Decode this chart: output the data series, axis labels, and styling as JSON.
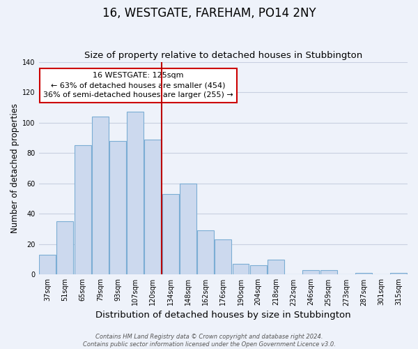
{
  "title": "16, WESTGATE, FAREHAM, PO14 2NY",
  "subtitle": "Size of property relative to detached houses in Stubbington",
  "xlabel": "Distribution of detached houses by size in Stubbington",
  "ylabel": "Number of detached properties",
  "bar_color": "#ccd9ee",
  "bar_edge_color": "#7badd4",
  "categories": [
    "37sqm",
    "51sqm",
    "65sqm",
    "79sqm",
    "93sqm",
    "107sqm",
    "120sqm",
    "134sqm",
    "148sqm",
    "162sqm",
    "176sqm",
    "190sqm",
    "204sqm",
    "218sqm",
    "232sqm",
    "246sqm",
    "259sqm",
    "273sqm",
    "287sqm",
    "301sqm",
    "315sqm"
  ],
  "values": [
    13,
    35,
    85,
    104,
    88,
    107,
    89,
    53,
    60,
    29,
    23,
    7,
    6,
    10,
    0,
    3,
    3,
    0,
    1,
    0,
    1
  ],
  "vline_x_idx": 6,
  "vline_color": "#bb0000",
  "annotation_title": "16 WESTGATE: 125sqm",
  "annotation_line1": "← 63% of detached houses are smaller (454)",
  "annotation_line2": "36% of semi-detached houses are larger (255) →",
  "annotation_box_color": "#ffffff",
  "annotation_box_edge": "#cc0000",
  "ylim": [
    0,
    140
  ],
  "yticks": [
    0,
    20,
    40,
    60,
    80,
    100,
    120,
    140
  ],
  "footer1": "Contains HM Land Registry data © Crown copyright and database right 2024.",
  "footer2": "Contains public sector information licensed under the Open Government Licence v3.0.",
  "bg_color": "#eef2fa",
  "grid_color": "#c8cfe0",
  "title_fontsize": 12,
  "subtitle_fontsize": 9.5,
  "xlabel_fontsize": 9.5,
  "ylabel_fontsize": 8.5,
  "tick_fontsize": 7,
  "annotation_fontsize": 8,
  "footer_fontsize": 6
}
